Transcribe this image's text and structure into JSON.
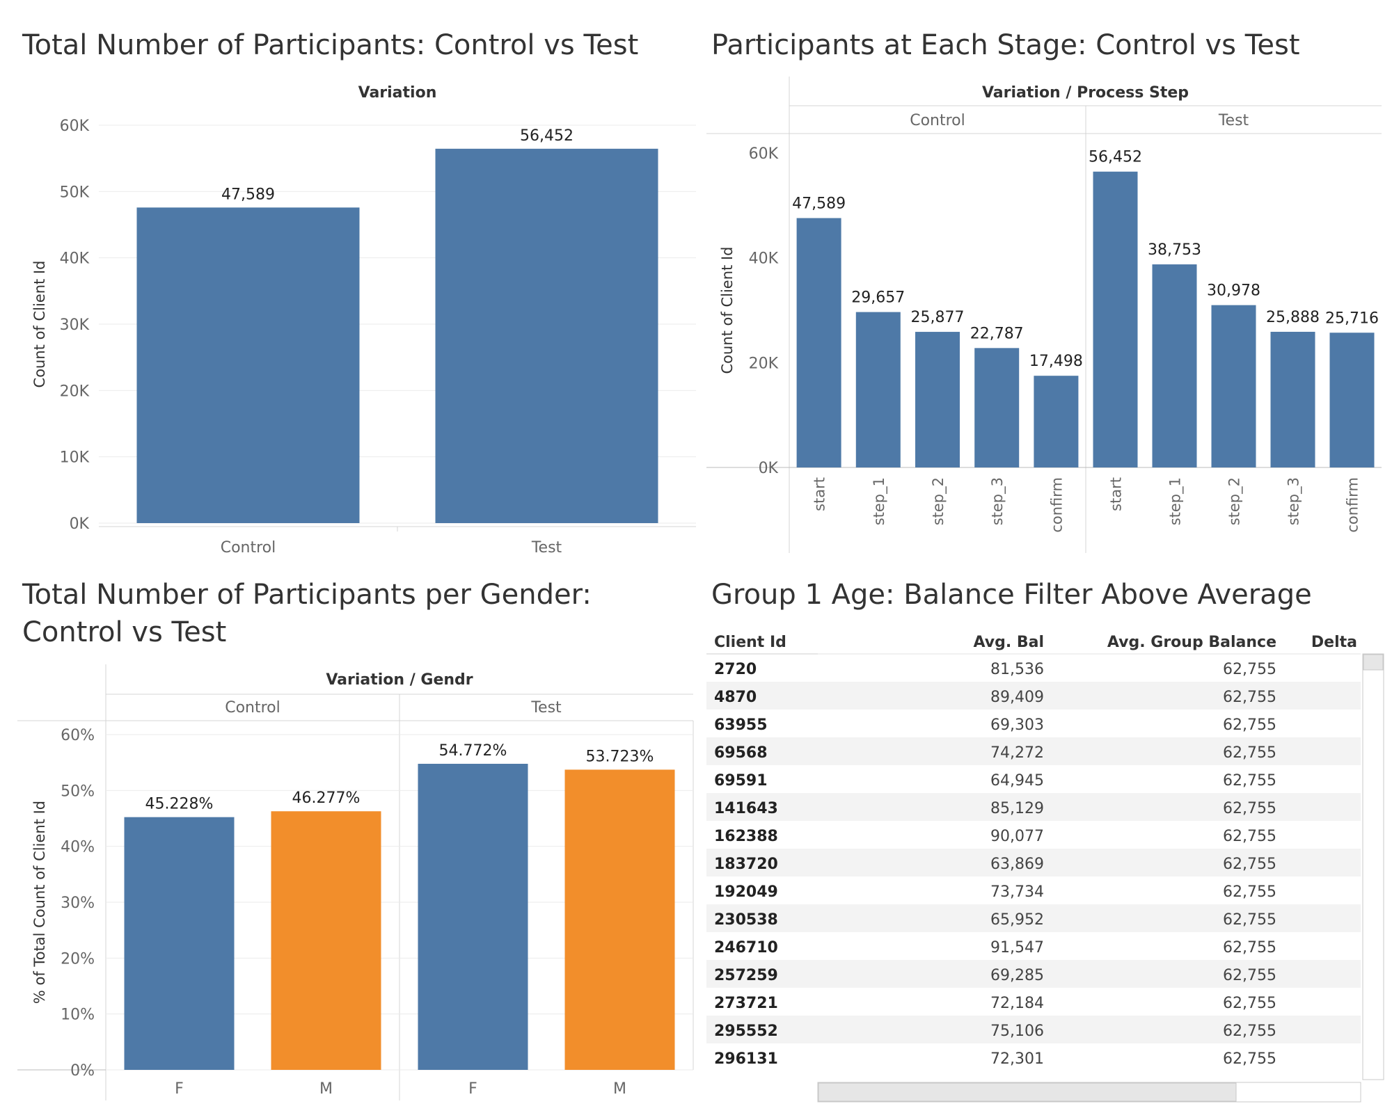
{
  "chart_data": [
    {
      "type": "bar",
      "title": "Total Number of Participants: Control vs Test",
      "header": "Variation",
      "ylabel": "Count of Client Id",
      "categories": [
        "Control",
        "Test"
      ],
      "values": [
        47589,
        56452
      ],
      "value_labels": [
        "47,589",
        "56,452"
      ],
      "ylim": [
        0,
        60000
      ],
      "yticks": [
        0,
        10000,
        20000,
        30000,
        40000,
        50000,
        60000
      ],
      "ytick_labels": [
        "0K",
        "10K",
        "20K",
        "30K",
        "40K",
        "50K",
        "60K"
      ],
      "color": "#4e79a7"
    },
    {
      "type": "bar",
      "title": "Participants at Each Stage: Control vs Test",
      "header": "Variation  /  Process Step",
      "ylabel": "Count of Client Id",
      "groups": [
        {
          "name": "Control",
          "categories": [
            "start",
            "step_1",
            "step_2",
            "step_3",
            "confirm"
          ],
          "values": [
            47589,
            29657,
            25877,
            22787,
            17498
          ],
          "value_labels": [
            "47,589",
            "29,657",
            "25,877",
            "22,787",
            "17,498"
          ]
        },
        {
          "name": "Test",
          "categories": [
            "start",
            "step_1",
            "step_2",
            "step_3",
            "confirm"
          ],
          "values": [
            56452,
            38753,
            30978,
            25888,
            25716
          ],
          "value_labels": [
            "56,452",
            "38,753",
            "30,978",
            "25,888",
            "25,716"
          ]
        }
      ],
      "ylim": [
        0,
        60000
      ],
      "yticks": [
        0,
        20000,
        40000,
        60000
      ],
      "ytick_labels": [
        "0K",
        "20K",
        "40K",
        "60K"
      ],
      "color": "#4e79a7"
    },
    {
      "type": "bar",
      "title": "Total Number of Participants per Gender: Control vs Test",
      "header": "Variation  /  Gendr",
      "ylabel": "% of Total Count of Client Id",
      "groups": [
        {
          "name": "Control",
          "categories": [
            "F",
            "M"
          ],
          "values": [
            45.228,
            46.277
          ],
          "value_labels": [
            "45.228%",
            "46.277%"
          ]
        },
        {
          "name": "Test",
          "categories": [
            "F",
            "M"
          ],
          "values": [
            54.772,
            53.723
          ],
          "value_labels": [
            "54.772%",
            "53.723%"
          ]
        }
      ],
      "ylim": [
        0,
        60
      ],
      "yticks": [
        0,
        10,
        20,
        30,
        40,
        50,
        60
      ],
      "ytick_labels": [
        "0%",
        "10%",
        "20%",
        "30%",
        "40%",
        "50%",
        "60%"
      ],
      "colors": {
        "F": "#4e79a7",
        "M": "#f28e2b"
      }
    },
    {
      "type": "table",
      "title": "Group 1 Age: Balance Filter Above Average",
      "columns": [
        "Client Id",
        "Avg. Bal",
        "Avg. Group Balance",
        "Delta"
      ],
      "rows": [
        [
          "2720",
          "81,536",
          "62,755",
          ""
        ],
        [
          "4870",
          "89,409",
          "62,755",
          ""
        ],
        [
          "63955",
          "69,303",
          "62,755",
          ""
        ],
        [
          "69568",
          "74,272",
          "62,755",
          ""
        ],
        [
          "69591",
          "64,945",
          "62,755",
          ""
        ],
        [
          "141643",
          "85,129",
          "62,755",
          ""
        ],
        [
          "162388",
          "90,077",
          "62,755",
          ""
        ],
        [
          "183720",
          "63,869",
          "62,755",
          ""
        ],
        [
          "192049",
          "73,734",
          "62,755",
          ""
        ],
        [
          "230538",
          "65,952",
          "62,755",
          ""
        ],
        [
          "246710",
          "91,547",
          "62,755",
          ""
        ],
        [
          "257259",
          "69,285",
          "62,755",
          ""
        ],
        [
          "273721",
          "72,184",
          "62,755",
          ""
        ],
        [
          "295552",
          "75,106",
          "62,755",
          ""
        ],
        [
          "296131",
          "72,301",
          "62,755",
          ""
        ]
      ]
    }
  ]
}
